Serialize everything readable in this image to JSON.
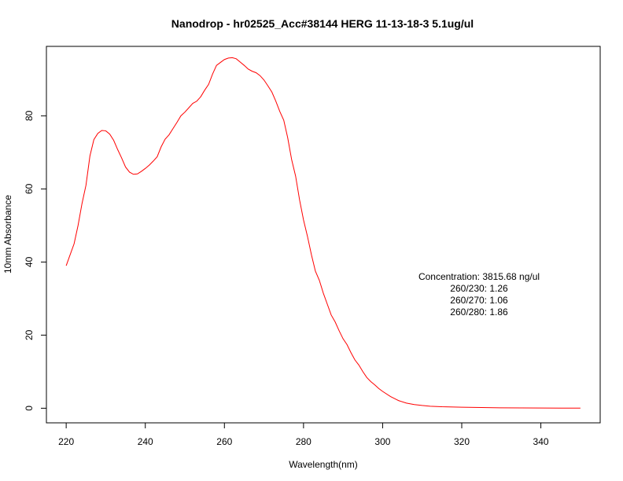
{
  "chart_data": {
    "type": "line",
    "title": "Nanodrop - hr02525_Acc#38144  HERG 11-13-18-3 5.1ug/ul",
    "xlabel": "Wavelength(nm)",
    "ylabel": "10mm Absorbance",
    "xlim": [
      215,
      355
    ],
    "ylim": [
      -4,
      99
    ],
    "x_ticks": [
      220,
      240,
      260,
      280,
      300,
      320,
      340
    ],
    "y_ticks": [
      0,
      20,
      40,
      60,
      80
    ],
    "grid": false,
    "line_color": "#ff0000",
    "annotations": [
      "Concentration: 3815.68 ng/ul",
      "260/230: 1.26",
      "260/270: 1.06",
      "260/280: 1.86"
    ],
    "x": [
      220,
      221,
      222,
      223,
      224,
      225,
      226,
      227,
      228,
      229,
      230,
      231,
      232,
      233,
      234,
      235,
      236,
      237,
      238,
      239,
      240,
      241,
      242,
      243,
      244,
      245,
      246,
      247,
      248,
      249,
      250,
      251,
      252,
      253,
      254,
      255,
      256,
      257,
      258,
      259,
      260,
      261,
      262,
      263,
      264,
      265,
      266,
      267,
      268,
      269,
      270,
      271,
      272,
      273,
      274,
      275,
      276,
      277,
      278,
      279,
      280,
      281,
      282,
      283,
      284,
      285,
      286,
      287,
      288,
      289,
      290,
      291,
      292,
      293,
      294,
      295,
      296,
      297,
      298,
      299,
      300,
      302,
      304,
      306,
      308,
      310,
      312,
      315,
      320,
      325,
      330,
      335,
      340,
      345,
      350
    ],
    "y": [
      39,
      42,
      45,
      50,
      56,
      61,
      69,
      73.5,
      75.2,
      76,
      75.9,
      75,
      73.3,
      70.8,
      68.5,
      66,
      64.6,
      64,
      64.1,
      64.8,
      65.6,
      66.5,
      67.6,
      68.8,
      71.5,
      73.6,
      74.8,
      76.5,
      78.2,
      80,
      81,
      82.2,
      83.4,
      84,
      85.2,
      87,
      88.6,
      91.4,
      93.8,
      94.6,
      95.4,
      95.8,
      95.9,
      95.6,
      94.7,
      93.8,
      92.8,
      92.2,
      91.8,
      91,
      89.8,
      88.2,
      86.5,
      84,
      81.2,
      78.8,
      74,
      68,
      63.5,
      57,
      51.5,
      47,
      42,
      37.5,
      35,
      31.5,
      28.5,
      25.5,
      23.6,
      21.2,
      19,
      17.4,
      15.2,
      13.2,
      11.8,
      10,
      8.4,
      7.3,
      6.4,
      5.4,
      4.6,
      3.2,
      2.1,
      1.4,
      1.0,
      0.75,
      0.55,
      0.4,
      0.28,
      0.18,
      0.12,
      0.08,
      0.05,
      0.03,
      0.02
    ]
  }
}
